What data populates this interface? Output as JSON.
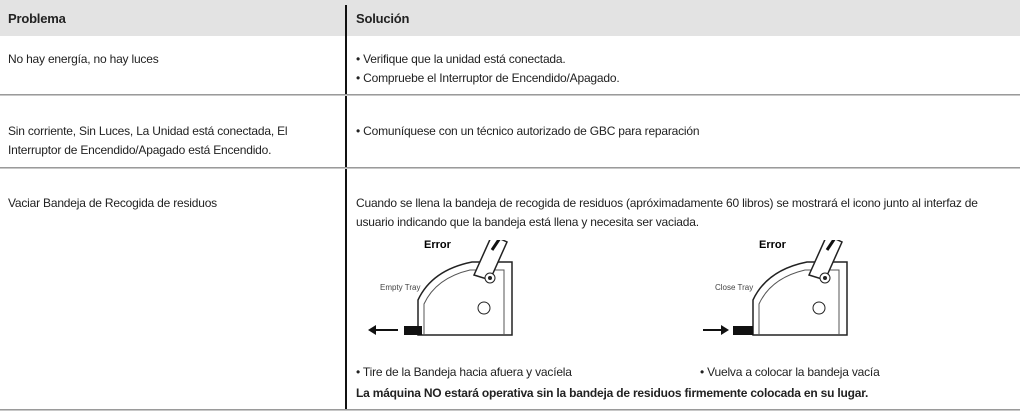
{
  "table": {
    "header": [
      "Problema",
      "Solución"
    ],
    "rows": [
      {
        "problem": "No hay energía, no hay luces",
        "solution": [
          "• Verifique que la unidad está conectada.",
          "• Compruebe el Interruptor de Encendido/Apagado."
        ]
      },
      {
        "problem": "Sin corriente, Sin Luces, La Unidad está conectada, El Interruptor de  Encendido/Apagado está Encendido.",
        "solution": [
          "• Comuníquese con un técnico autorizado de GBC para reparación"
        ]
      },
      {
        "problem": "Vaciar Bandeja de Recogida de residuos",
        "solution": [
          "Cuando se llena la bandeja de recogida de residuos (apróximadamente 60 libros) se mostrará el icono junto al interfaz de usuario indicando que la bandeja está llena y necesita ser vaciada."
        ],
        "figures": [
          {
            "title": "Error",
            "label": "Empty Tray",
            "caption": "• Tire de la Bandeja hacia afuera y vacíela"
          },
          {
            "title": "Error",
            "label": "Close Tray",
            "caption": "• Vuelva a colocar la bandeja vacía"
          }
        ],
        "note": "La máquina NO estará operativa sin la bandeja de residuos firmemente colocada en su lugar."
      }
    ]
  }
}
